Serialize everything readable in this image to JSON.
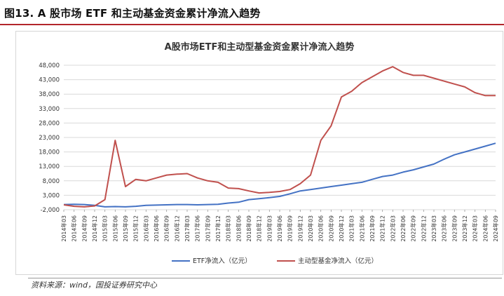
{
  "figure_title": "图13. A 股市场 ETF 和主动基金资金累计净流入趋势",
  "source_note": "资料来源：wind，国投证券研究中心",
  "colors": {
    "etf": "#4472c4",
    "active": "#c0504d",
    "grid": "#d9d9d9",
    "accent_rule": "#b3262b"
  },
  "chart_data": {
    "type": "line",
    "title": "A股市场ETF和主动型基金资金累计净流入趋势",
    "xlabel": "",
    "ylabel": "",
    "ylim": [
      -2000,
      48000
    ],
    "yticks": [
      "-2,000",
      "3,000",
      "8,000",
      "13,000",
      "18,000",
      "23,000",
      "28,000",
      "33,000",
      "38,000",
      "43,000",
      "48,000"
    ],
    "grid": true,
    "legend_position": "bottom",
    "x": [
      "2014年03",
      "2014年06",
      "2014年09",
      "2014年12",
      "2015年03",
      "2015年06",
      "2015年09",
      "2015年12",
      "2016年03",
      "2016年06",
      "2016年09",
      "2016年12",
      "2017年03",
      "2017年06",
      "2017年09",
      "2017年12",
      "2018年03",
      "2018年06",
      "2018年09",
      "2018年12",
      "2019年03",
      "2019年06",
      "2019年09",
      "2019年12",
      "2020年03",
      "2020年06",
      "2020年09",
      "2020年12",
      "2021年03",
      "2021年06",
      "2021年09",
      "2021年12",
      "2022年03",
      "2022年06",
      "2022年09",
      "2022年12",
      "2023年03",
      "2023年06",
      "2023年09",
      "2023年12",
      "2024年03",
      "2024年06",
      "2024年09"
    ],
    "series": [
      {
        "name": "ETF净流入（亿元）",
        "values": [
          -200,
          -100,
          -200,
          -500,
          -1000,
          -900,
          -1000,
          -800,
          -500,
          -400,
          -300,
          -200,
          -200,
          -300,
          -200,
          -100,
          300,
          600,
          1500,
          1800,
          2200,
          2600,
          3500,
          4500,
          5000,
          5500,
          6000,
          6500,
          7000,
          7500,
          8500,
          9500,
          10000,
          11000,
          11800,
          12800,
          13800,
          15500,
          17000,
          18000,
          19000,
          20000,
          21000
        ]
      },
      {
        "name": "主动型基金净流入（亿元）",
        "values": [
          -300,
          -800,
          -1000,
          -700,
          1500,
          22000,
          6000,
          8500,
          8000,
          9000,
          10000,
          10300,
          10500,
          9000,
          8000,
          7500,
          5500,
          5300,
          4500,
          3800,
          4000,
          4300,
          5000,
          7000,
          10000,
          22000,
          27000,
          37000,
          39000,
          42000,
          44000,
          46000,
          47500,
          45500,
          44500,
          44500,
          43500,
          42500,
          41500,
          40500,
          38500,
          37500,
          37500
        ]
      }
    ]
  }
}
